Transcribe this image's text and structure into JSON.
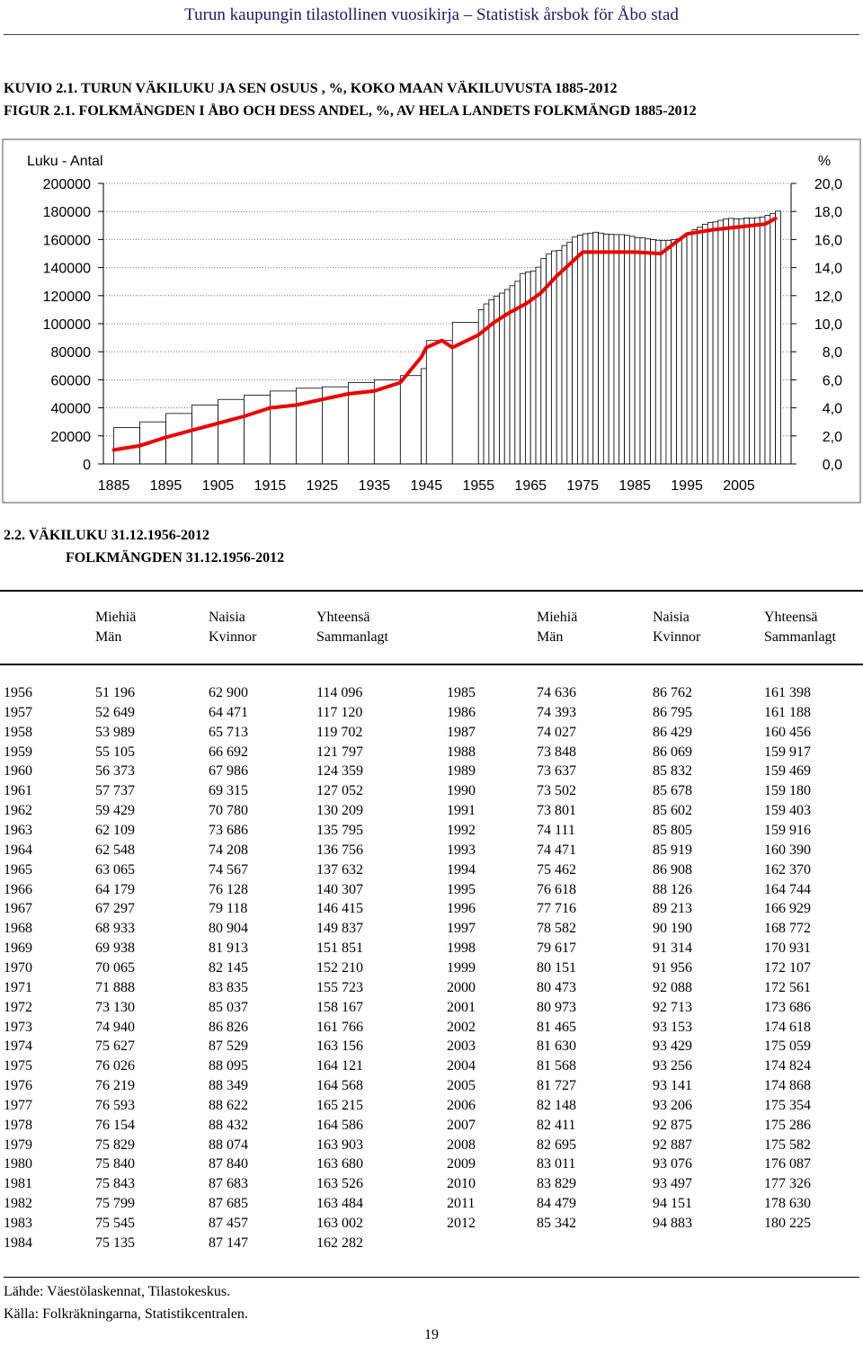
{
  "header": {
    "title": "Turun kaupungin tilastollinen vuosikirja – Statistisk årsbok för Åbo stad"
  },
  "figure": {
    "title_fi": "KUVIO 2.1. TURUN VÄKILUKU JA SEN OSUUS , %, KOKO MAAN VÄKILUVUSTA 1885-2012",
    "title_sv": "FIGUR 2.1.  FOLKMÄNGDEN I ÅBO OCH DESS ANDEL, %, AV HELA LANDETS FOLKMÄNGD 1885-2012"
  },
  "chart_data": {
    "type": "bar+line",
    "left_axis_label": "Luku - Antal",
    "right_axis_label": "%",
    "left_ylim": [
      0,
      200000
    ],
    "right_ylim": [
      0,
      20
    ],
    "left_ticks": [
      "200000",
      "180000",
      "160000",
      "140000",
      "120000",
      "100000",
      "80000",
      "60000",
      "40000",
      "20000",
      "0"
    ],
    "right_ticks": [
      "20,0",
      "18,0",
      "16,0",
      "14,0",
      "12,0",
      "10,0",
      "8,0",
      "6,0",
      "4,0",
      "2,0",
      "0,0"
    ],
    "x_tick_labels": [
      "1885",
      "1895",
      "1905",
      "1915",
      "1925",
      "1935",
      "1945",
      "1955",
      "1965",
      "1975",
      "1985",
      "1995",
      "2005"
    ],
    "grid": true,
    "bar_color": "#ffffff",
    "line_color": "#ee0000",
    "population_years": [
      1885,
      1890,
      1895,
      1900,
      1905,
      1910,
      1915,
      1920,
      1925,
      1930,
      1935,
      1940,
      1944,
      1945,
      1950,
      1955,
      1956,
      1957,
      1958,
      1959,
      1960,
      1961,
      1962,
      1963,
      1964,
      1965,
      1966,
      1967,
      1968,
      1969,
      1970,
      1971,
      1972,
      1973,
      1974,
      1975,
      1976,
      1977,
      1978,
      1979,
      1980,
      1981,
      1982,
      1983,
      1984,
      1985,
      1986,
      1987,
      1988,
      1989,
      1990,
      1991,
      1992,
      1993,
      1994,
      1995,
      1996,
      1997,
      1998,
      1999,
      2000,
      2001,
      2002,
      2003,
      2004,
      2005,
      2006,
      2007,
      2008,
      2009,
      2010,
      2011,
      2012
    ],
    "population": [
      26000,
      30000,
      36000,
      42000,
      46000,
      49000,
      52000,
      54000,
      55000,
      58000,
      60000,
      63000,
      68000,
      88000,
      101000,
      110000,
      114096,
      117120,
      119702,
      121797,
      124359,
      127052,
      130209,
      135795,
      136756,
      137632,
      140307,
      146415,
      149837,
      151851,
      152210,
      155723,
      158167,
      161766,
      163156,
      164121,
      164568,
      165215,
      164586,
      163903,
      163680,
      163526,
      163484,
      163002,
      162282,
      161398,
      161188,
      160456,
      159917,
      159469,
      159180,
      159403,
      159916,
      160390,
      162370,
      164744,
      166929,
      168772,
      170931,
      172107,
      172561,
      173686,
      174618,
      175059,
      174824,
      174868,
      175354,
      175286,
      175582,
      176087,
      177326,
      178630,
      180225
    ],
    "share_years": [
      1885,
      1890,
      1895,
      1900,
      1905,
      1910,
      1915,
      1920,
      1925,
      1930,
      1935,
      1940,
      1944,
      1945,
      1948,
      1950,
      1955,
      1958,
      1961,
      1964,
      1967,
      1970,
      1975,
      1980,
      1985,
      1990,
      1995,
      2000,
      2005,
      2010,
      2012
    ],
    "share": [
      1.0,
      1.3,
      1.9,
      2.4,
      2.9,
      3.4,
      4.0,
      4.2,
      4.6,
      5.0,
      5.2,
      5.8,
      7.6,
      8.3,
      8.8,
      8.3,
      9.2,
      10.1,
      10.8,
      11.4,
      12.2,
      13.4,
      15.1,
      15.1,
      15.1,
      15.0,
      16.4,
      16.7,
      16.9,
      17.1,
      17.5
    ]
  },
  "table": {
    "title_fi": "2.2.  VÄKILUKU 31.12.1956-2012",
    "title_sv": "FOLKMÄNGDEN 31.12.1956-2012",
    "headers_fi": [
      "Miehiä",
      "Naisia",
      "Yhteensä",
      "Miehiä",
      "Naisia",
      "Yhteensä"
    ],
    "headers_sv": [
      "Män",
      "Kvinnor",
      "Sammanlagt",
      "Män",
      "Kvinnor",
      "Sammanlagt"
    ],
    "left_rows": [
      [
        "1956",
        "51 196",
        "62 900",
        "114 096"
      ],
      [
        "1957",
        "52 649",
        "64 471",
        "117 120"
      ],
      [
        "1958",
        "53 989",
        "65 713",
        "119 702"
      ],
      [
        "1959",
        "55 105",
        "66 692",
        "121 797"
      ],
      [
        "1960",
        "56 373",
        "67 986",
        "124 359"
      ],
      [
        "1961",
        "57 737",
        "69 315",
        "127 052"
      ],
      [
        "1962",
        "59 429",
        "70 780",
        "130 209"
      ],
      [
        "1963",
        "62 109",
        "73 686",
        "135 795"
      ],
      [
        "1964",
        "62 548",
        "74 208",
        "136 756"
      ],
      [
        "1965",
        "63 065",
        "74 567",
        "137 632"
      ],
      [
        "1966",
        "64 179",
        "76 128",
        "140 307"
      ],
      [
        "1967",
        "67 297",
        "79 118",
        "146 415"
      ],
      [
        "1968",
        "68 933",
        "80 904",
        "149 837"
      ],
      [
        "1969",
        "69 938",
        "81 913",
        "151 851"
      ],
      [
        "1970",
        "70 065",
        "82 145",
        "152 210"
      ],
      [
        "1971",
        "71 888",
        "83 835",
        "155 723"
      ],
      [
        "1972",
        "73 130",
        "85 037",
        "158 167"
      ],
      [
        "1973",
        "74 940",
        "86 826",
        "161 766"
      ],
      [
        "1974",
        "75 627",
        "87 529",
        "163 156"
      ],
      [
        "1975",
        "76 026",
        "88 095",
        "164 121"
      ],
      [
        "1976",
        "76 219",
        "88 349",
        "164 568"
      ],
      [
        "1977",
        "76 593",
        "88 622",
        "165 215"
      ],
      [
        "1978",
        "76 154",
        "88 432",
        "164 586"
      ],
      [
        "1979",
        "75 829",
        "88 074",
        "163 903"
      ],
      [
        "1980",
        "75 840",
        "87 840",
        "163 680"
      ],
      [
        "1981",
        "75 843",
        "87 683",
        "163 526"
      ],
      [
        "1982",
        "75 799",
        "87 685",
        "163 484"
      ],
      [
        "1983",
        "75 545",
        "87 457",
        "163 002"
      ],
      [
        "1984",
        "75 135",
        "87 147",
        "162 282"
      ]
    ],
    "right_rows": [
      [
        "1985",
        "74 636",
        "86 762",
        "161 398"
      ],
      [
        "1986",
        "74 393",
        "86 795",
        "161 188"
      ],
      [
        "1987",
        "74 027",
        "86 429",
        "160 456"
      ],
      [
        "1988",
        "73 848",
        "86 069",
        "159 917"
      ],
      [
        "1989",
        "73 637",
        "85 832",
        "159 469"
      ],
      [
        "1990",
        "73 502",
        "85 678",
        "159 180"
      ],
      [
        "1991",
        "73 801",
        "85 602",
        "159 403"
      ],
      [
        "1992",
        "74 111",
        "85 805",
        "159 916"
      ],
      [
        "1993",
        "74 471",
        "85 919",
        "160 390"
      ],
      [
        "1994",
        "75 462",
        "86 908",
        "162 370"
      ],
      [
        "1995",
        "76 618",
        "88 126",
        "164 744"
      ],
      [
        "1996",
        "77 716",
        "89 213",
        "166 929"
      ],
      [
        "1997",
        "78 582",
        "90 190",
        "168 772"
      ],
      [
        "1998",
        "79 617",
        "91 314",
        "170 931"
      ],
      [
        "1999",
        "80 151",
        "91 956",
        "172 107"
      ],
      [
        "2000",
        "80 473",
        "92 088",
        "172 561"
      ],
      [
        "2001",
        "80 973",
        "92 713",
        "173 686"
      ],
      [
        "2002",
        "81 465",
        "93 153",
        "174 618"
      ],
      [
        "2003",
        "81 630",
        "93 429",
        "175 059"
      ],
      [
        "2004",
        "81 568",
        "93 256",
        "174 824"
      ],
      [
        "2005",
        "81 727",
        "93 141",
        "174 868"
      ],
      [
        "2006",
        "82 148",
        "93 206",
        "175 354"
      ],
      [
        "2007",
        "82 411",
        "92 875",
        "175 286"
      ],
      [
        "2008",
        "82 695",
        "92 887",
        "175 582"
      ],
      [
        "2009",
        "83 011",
        "93 076",
        "176 087"
      ],
      [
        "2010",
        "83 829",
        "93 497",
        "177 326"
      ],
      [
        "2011",
        "84 479",
        "94 151",
        "178 630"
      ],
      [
        "2012",
        "85 342",
        "94 883",
        "180 225"
      ]
    ]
  },
  "source": {
    "fi": "Lähde:  Väestölaskennat, Tilastokeskus.",
    "sv": "Källa:   Folkräkningarna, Statistikcentralen."
  },
  "page_number": "19"
}
